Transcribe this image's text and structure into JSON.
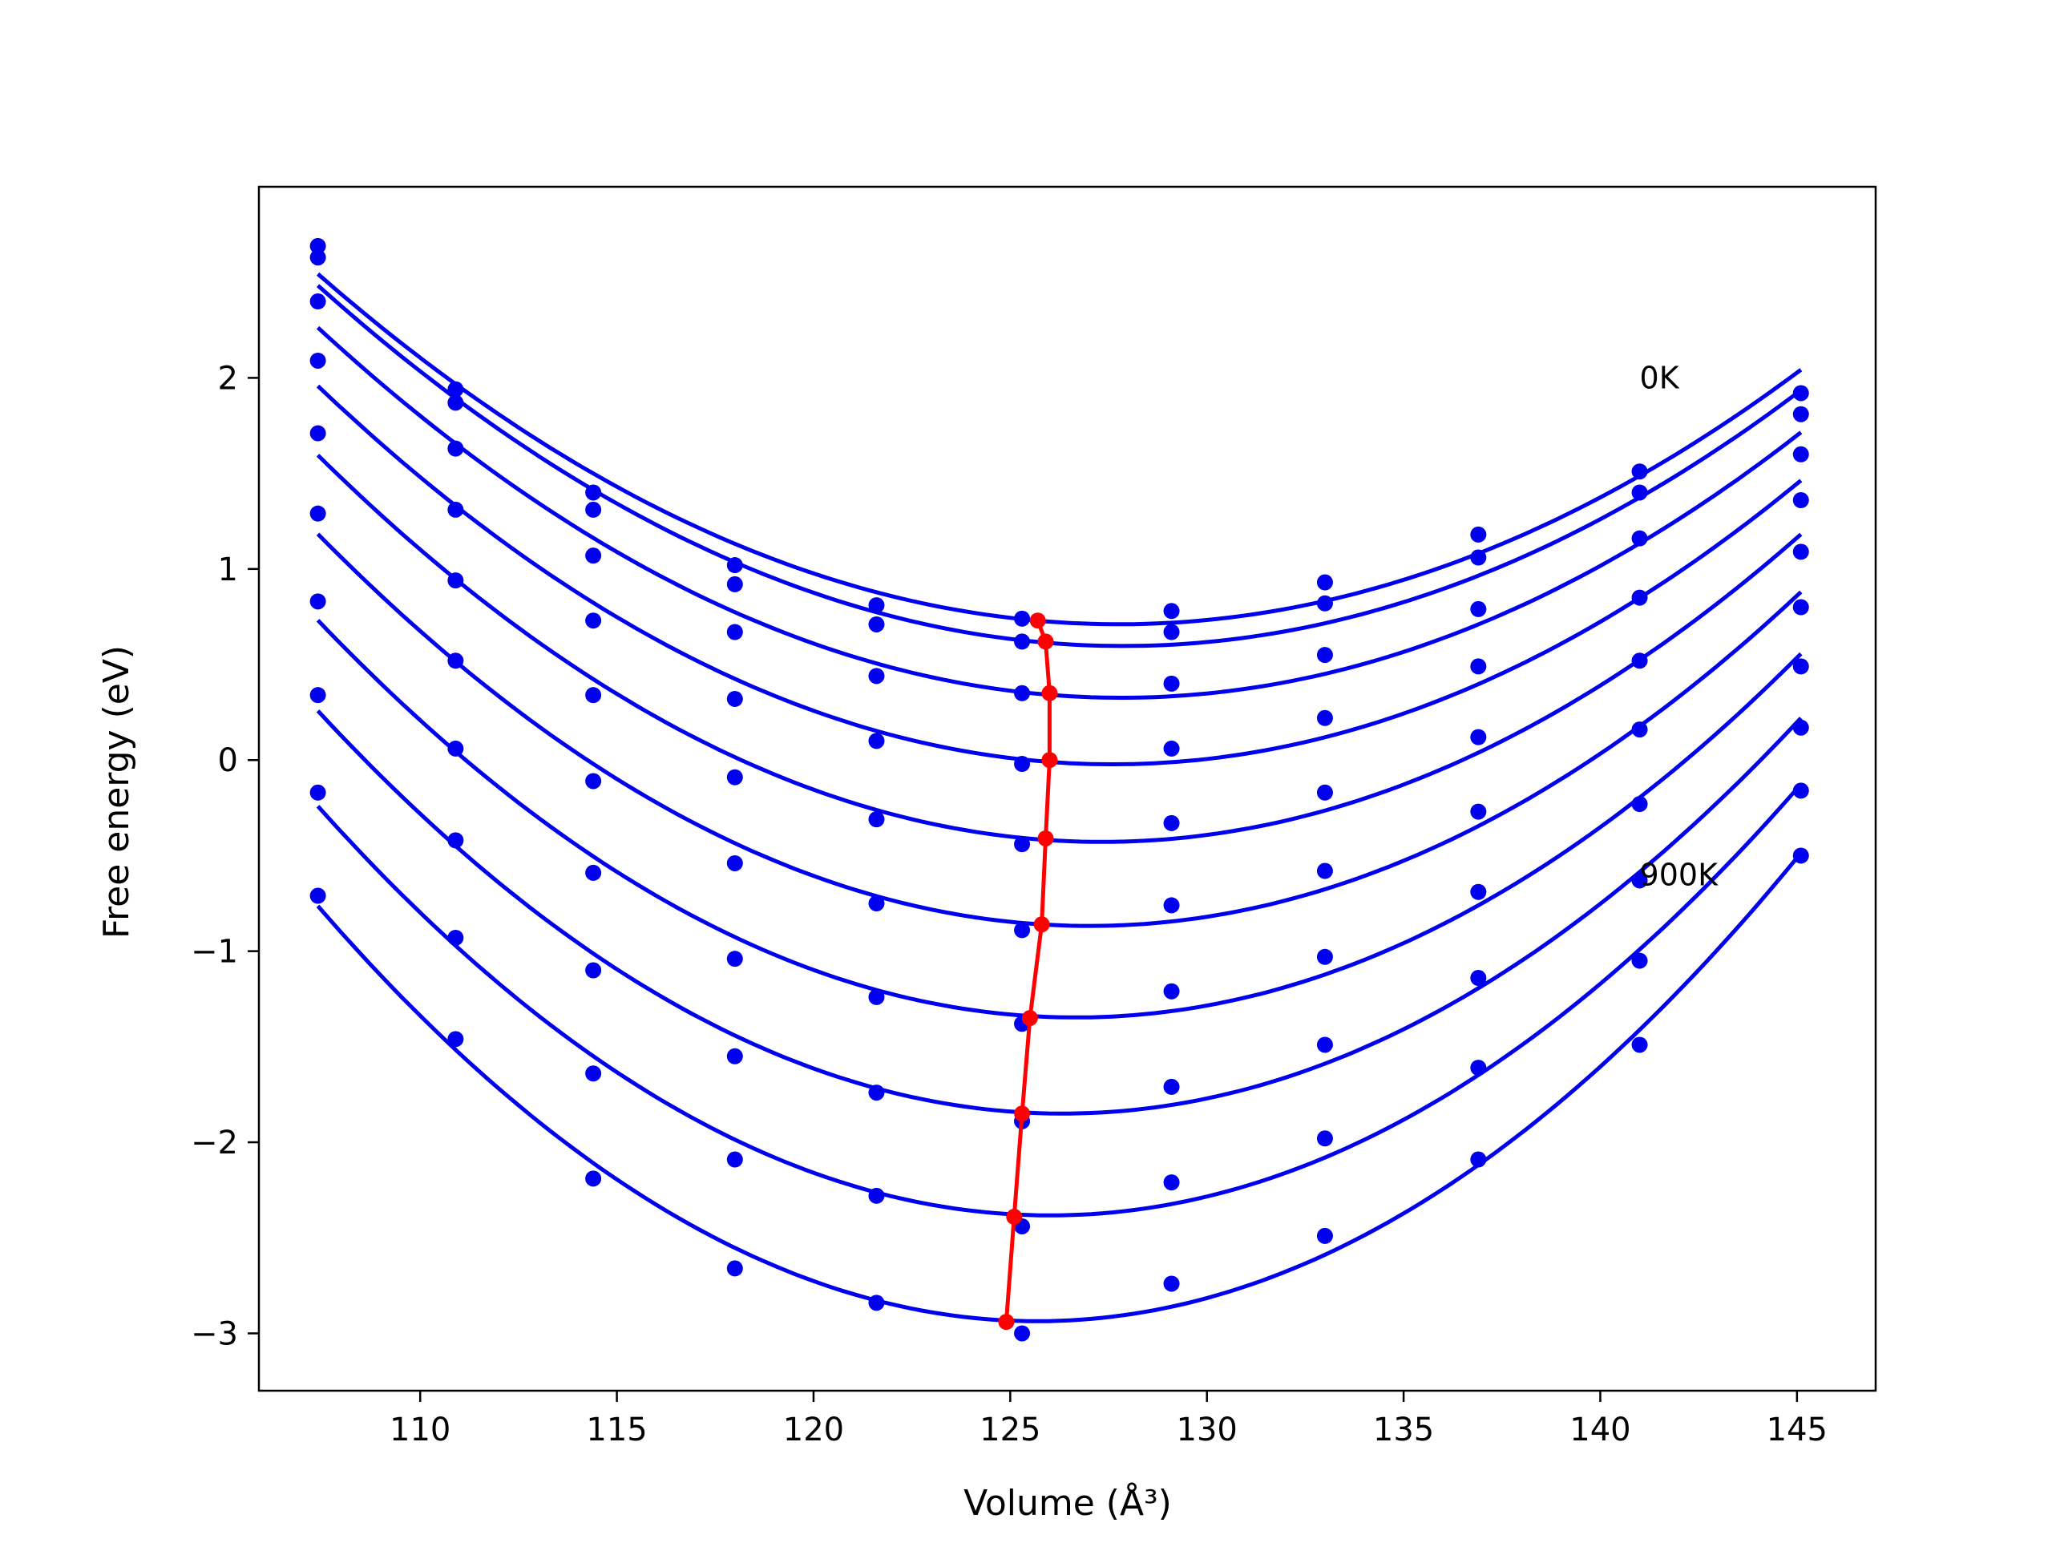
{
  "chart_data": {
    "type": "line",
    "title": "",
    "xlabel": "Volume (Å³)",
    "ylabel": "Free energy (eV)",
    "xlim": [
      105.9,
      147.0
    ],
    "ylim": [
      -3.3,
      3.0
    ],
    "xticks": [
      110,
      115,
      120,
      125,
      130,
      135,
      140,
      145
    ],
    "xtick_labels": [
      "110",
      "115",
      "120",
      "125",
      "130",
      "135",
      "140",
      "145"
    ],
    "yticks": [
      -3,
      -2,
      -1,
      0,
      1,
      2
    ],
    "ytick_labels": [
      "−3",
      "−2",
      "−1",
      "0",
      "1",
      "2"
    ],
    "grid": false,
    "legend": "none",
    "colors": {
      "curves": "#0000ee",
      "points": "#0000ee",
      "minima": "#ff0000"
    },
    "annotations": [
      {
        "text": "0K",
        "x": 141.0,
        "y": 2.0
      },
      {
        "text": "900K",
        "x": 141.0,
        "y": -0.6
      }
    ],
    "x": [
      107.4,
      110.9,
      114.4,
      118.0,
      121.6,
      125.3,
      129.1,
      133.0,
      136.9,
      141.0,
      145.1
    ],
    "series": [
      {
        "values": [
          2.69,
          1.94,
          1.4,
          1.02,
          0.81,
          0.74,
          0.78,
          0.93,
          1.18,
          1.51,
          1.92
        ]
      },
      {
        "values": [
          2.63,
          1.87,
          1.31,
          0.92,
          0.71,
          0.62,
          0.67,
          0.82,
          1.06,
          1.4,
          1.81
        ]
      },
      {
        "values": [
          2.4,
          1.63,
          1.07,
          0.67,
          0.44,
          0.35,
          0.4,
          0.55,
          0.79,
          1.16,
          1.6
        ]
      },
      {
        "values": [
          2.09,
          1.31,
          0.73,
          0.32,
          0.1,
          -0.02,
          0.06,
          0.22,
          0.49,
          0.85,
          1.36
        ]
      },
      {
        "values": [
          1.71,
          0.94,
          0.34,
          -0.09,
          -0.31,
          -0.44,
          -0.33,
          -0.17,
          0.12,
          0.52,
          1.09
        ]
      },
      {
        "values": [
          1.29,
          0.52,
          -0.11,
          -0.54,
          -0.75,
          -0.89,
          -0.76,
          -0.58,
          -0.27,
          0.16,
          0.8
        ]
      },
      {
        "values": [
          0.83,
          0.06,
          -0.59,
          -1.04,
          -1.24,
          -1.38,
          -1.21,
          -1.03,
          -0.69,
          -0.23,
          0.49
        ]
      },
      {
        "values": [
          0.34,
          -0.42,
          -1.1,
          -1.55,
          -1.74,
          -1.89,
          -1.71,
          -1.49,
          -1.14,
          -0.63,
          0.17
        ]
      },
      {
        "values": [
          -0.17,
          -0.93,
          -1.64,
          -2.09,
          -2.28,
          -2.44,
          -2.21,
          -1.98,
          -1.61,
          -1.05,
          -0.16
        ]
      },
      {
        "values": [
          -0.71,
          -1.46,
          -2.19,
          -2.66,
          -2.84,
          -3.0,
          -2.74,
          -2.49,
          -2.09,
          -1.49,
          -0.5
        ]
      }
    ],
    "minima": {
      "x": [
        125.7,
        125.9,
        126.0,
        126.0,
        125.9,
        125.8,
        125.5,
        125.3,
        125.1,
        124.9
      ],
      "y": [
        0.73,
        0.62,
        0.35,
        0.0,
        -0.41,
        -0.86,
        -1.35,
        -1.85,
        -2.39,
        -2.94
      ]
    }
  }
}
